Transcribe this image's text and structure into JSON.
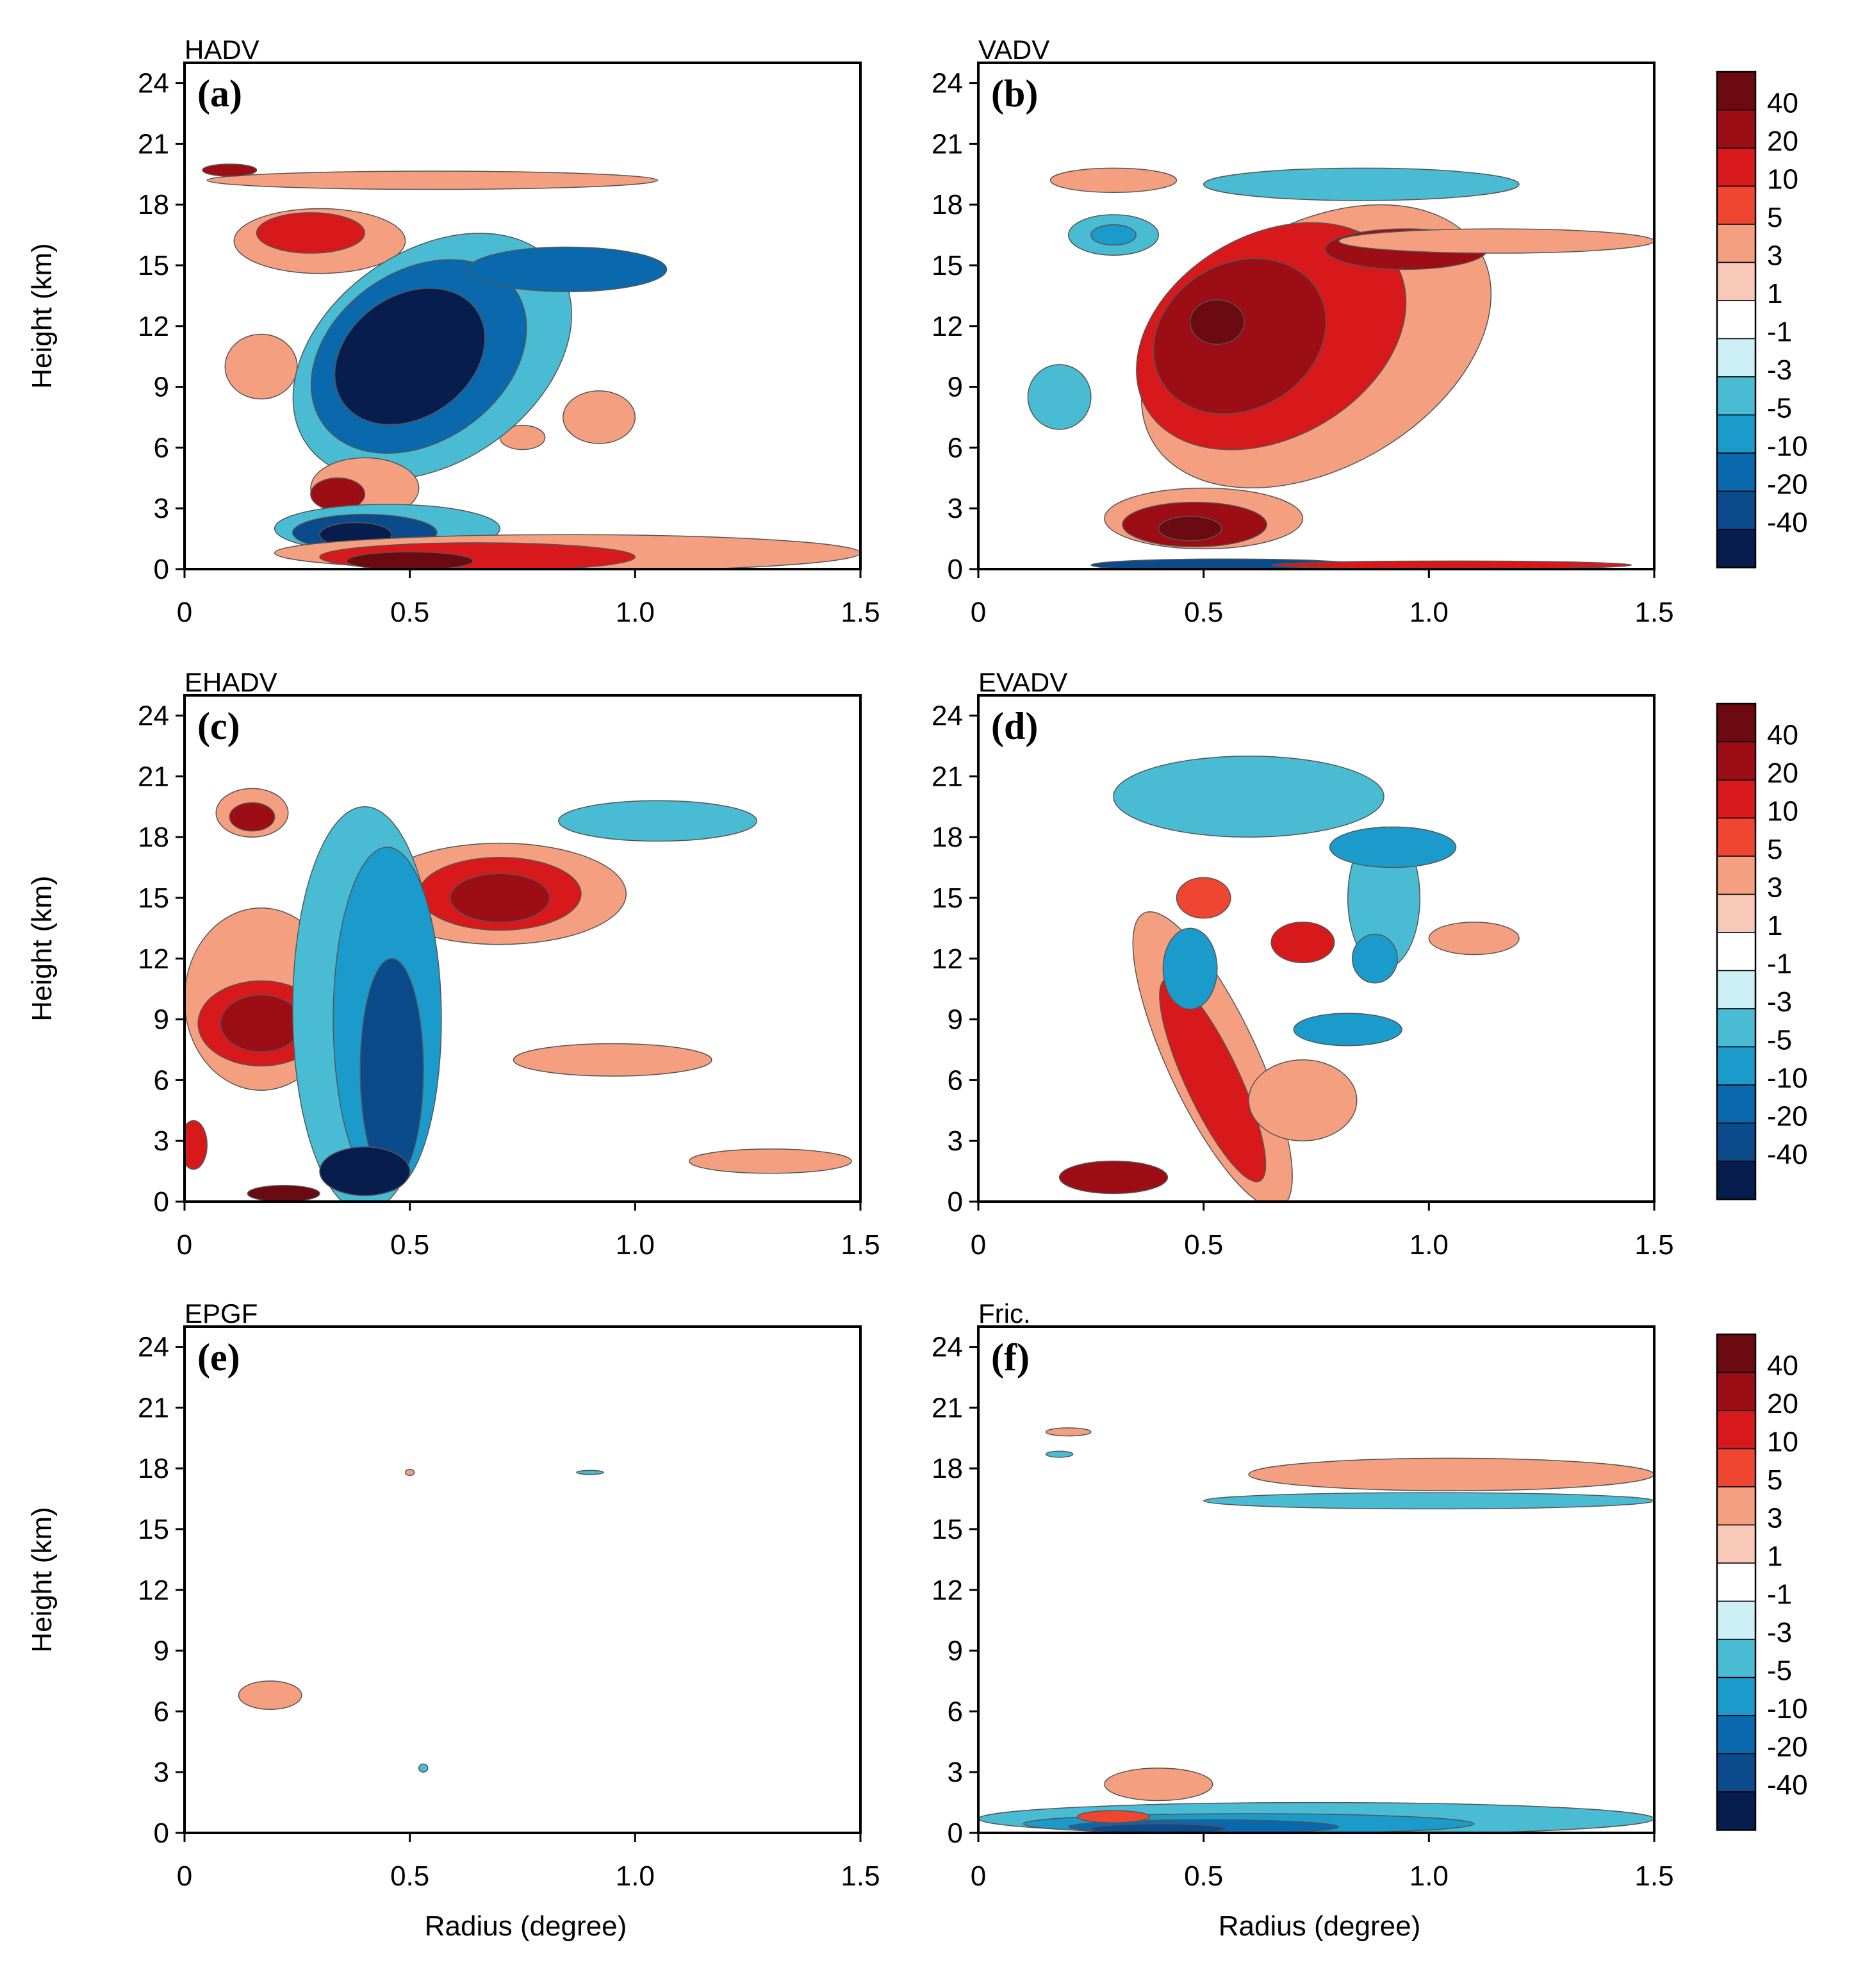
{
  "chart_data": {
    "type": "contour",
    "xlabel": "Radius (degree)",
    "ylabel": "Height (km)",
    "xlim": [
      0,
      1.5
    ],
    "ylim": [
      0,
      25
    ],
    "x_ticks": [
      "0",
      "0.5",
      "1.0",
      "1.5"
    ],
    "y_ticks": [
      "0",
      "3",
      "6",
      "9",
      "12",
      "15",
      "18",
      "21",
      "24"
    ],
    "colorbar": {
      "labels": [
        "40",
        "20",
        "10",
        "5",
        "3",
        "1",
        "-1",
        "-3",
        "-5",
        "-10",
        "-20",
        "-40"
      ],
      "colors": [
        "#6b0a10",
        "#9c0d16",
        "#d7191c",
        "#ee4630",
        "#f4a080",
        "#f8c8b8",
        "#ffffff",
        "#cceef5",
        "#49bbd2",
        "#1a9bcc",
        "#0a69ad",
        "#0b4b8c",
        "#061d4e"
      ]
    },
    "panels": [
      {
        "label": "(a)",
        "title": "HADV",
        "features": [
          {
            "x": 0.3,
            "y": 16.2,
            "rx": 0.19,
            "ry": 1.6,
            "level": 2
          },
          {
            "x": 0.28,
            "y": 16.6,
            "rx": 0.12,
            "ry": 1.0,
            "level": 4
          },
          {
            "x": 0.55,
            "y": 19.2,
            "rx": 0.5,
            "ry": 0.45,
            "level": 2
          },
          {
            "x": 0.1,
            "y": 19.7,
            "rx": 0.06,
            "ry": 0.3,
            "level": 5
          },
          {
            "x": 0.17,
            "y": 10.0,
            "rx": 0.08,
            "ry": 1.6,
            "level": 2
          },
          {
            "x": 0.92,
            "y": 7.5,
            "rx": 0.08,
            "ry": 1.3,
            "level": 2
          },
          {
            "x": 0.75,
            "y": 6.5,
            "rx": 0.05,
            "ry": 0.6,
            "level": 2
          },
          {
            "x": 0.55,
            "y": 10.5,
            "rx": 0.34,
            "ry": 5.2,
            "level": -2,
            "rot": -35
          },
          {
            "x": 0.52,
            "y": 10.5,
            "rx": 0.26,
            "ry": 4.2,
            "level": -4,
            "rot": -35
          },
          {
            "x": 0.5,
            "y": 10.5,
            "rx": 0.18,
            "ry": 3.0,
            "level": -6,
            "rot": -35
          },
          {
            "x": 0.85,
            "y": 14.8,
            "rx": 0.22,
            "ry": 1.1,
            "level": -4
          },
          {
            "x": 0.4,
            "y": 4.0,
            "rx": 0.12,
            "ry": 1.5,
            "level": 2
          },
          {
            "x": 0.34,
            "y": 3.7,
            "rx": 0.06,
            "ry": 0.8,
            "level": 5
          },
          {
            "x": 0.45,
            "y": 2.0,
            "rx": 0.25,
            "ry": 1.2,
            "level": -2
          },
          {
            "x": 0.4,
            "y": 1.8,
            "rx": 0.16,
            "ry": 0.9,
            "level": -5
          },
          {
            "x": 0.38,
            "y": 1.7,
            "rx": 0.08,
            "ry": 0.6,
            "level": -7
          },
          {
            "x": 0.85,
            "y": 0.8,
            "rx": 0.65,
            "ry": 0.9,
            "level": 2
          },
          {
            "x": 0.65,
            "y": 0.6,
            "rx": 0.35,
            "ry": 0.7,
            "level": 4
          },
          {
            "x": 0.5,
            "y": 0.4,
            "rx": 0.14,
            "ry": 0.45,
            "level": 6
          }
        ]
      },
      {
        "label": "(b)",
        "title": "VADV",
        "features": [
          {
            "x": 0.75,
            "y": 11.0,
            "rx": 0.42,
            "ry": 6.0,
            "level": 2,
            "rot": -30
          },
          {
            "x": 0.65,
            "y": 11.5,
            "rx": 0.32,
            "ry": 5.0,
            "level": 4,
            "rot": -30
          },
          {
            "x": 0.58,
            "y": 11.5,
            "rx": 0.2,
            "ry": 3.6,
            "level": 5,
            "rot": -30
          },
          {
            "x": 0.53,
            "y": 12.2,
            "rx": 0.06,
            "ry": 1.1,
            "level": 7
          },
          {
            "x": 0.95,
            "y": 15.8,
            "rx": 0.18,
            "ry": 1.0,
            "level": 5
          },
          {
            "x": 1.15,
            "y": 16.2,
            "rx": 0.35,
            "ry": 0.6,
            "level": 2
          },
          {
            "x": 0.3,
            "y": 19.2,
            "rx": 0.14,
            "ry": 0.6,
            "level": 2
          },
          {
            "x": 0.3,
            "y": 16.5,
            "rx": 0.1,
            "ry": 1.0,
            "level": -2
          },
          {
            "x": 0.3,
            "y": 16.5,
            "rx": 0.05,
            "ry": 0.5,
            "level": -3
          },
          {
            "x": 0.85,
            "y": 19.0,
            "rx": 0.35,
            "ry": 0.8,
            "level": -2
          },
          {
            "x": 0.18,
            "y": 8.5,
            "rx": 0.07,
            "ry": 1.6,
            "level": -2
          },
          {
            "x": 0.5,
            "y": 2.5,
            "rx": 0.22,
            "ry": 1.5,
            "level": 2
          },
          {
            "x": 0.48,
            "y": 2.2,
            "rx": 0.16,
            "ry": 1.1,
            "level": 5
          },
          {
            "x": 0.47,
            "y": 2.0,
            "rx": 0.07,
            "ry": 0.6,
            "level": 7
          },
          {
            "x": 0.55,
            "y": 0.2,
            "rx": 0.3,
            "ry": 0.3,
            "level": -5
          },
          {
            "x": 1.05,
            "y": 0.2,
            "rx": 0.4,
            "ry": 0.2,
            "level": 4
          }
        ]
      },
      {
        "label": "(c)",
        "title": "EHADV",
        "features": [
          {
            "x": 0.17,
            "y": 10.0,
            "rx": 0.17,
            "ry": 4.5,
            "level": 2
          },
          {
            "x": 0.17,
            "y": 8.8,
            "rx": 0.14,
            "ry": 2.1,
            "level": 4
          },
          {
            "x": 0.17,
            "y": 8.8,
            "rx": 0.09,
            "ry": 1.4,
            "level": 5
          },
          {
            "x": 0.15,
            "y": 19.2,
            "rx": 0.08,
            "ry": 1.2,
            "level": 2
          },
          {
            "x": 0.15,
            "y": 19.0,
            "rx": 0.05,
            "ry": 0.7,
            "level": 5
          },
          {
            "x": 0.7,
            "y": 15.2,
            "rx": 0.28,
            "ry": 2.5,
            "level": 2
          },
          {
            "x": 0.7,
            "y": 15.2,
            "rx": 0.18,
            "ry": 1.8,
            "level": 4
          },
          {
            "x": 0.7,
            "y": 15.0,
            "rx": 0.11,
            "ry": 1.2,
            "level": 5
          },
          {
            "x": 0.4,
            "y": 9.5,
            "rx": 0.16,
            "ry": 10.0,
            "level": -2
          },
          {
            "x": 0.45,
            "y": 9.0,
            "rx": 0.12,
            "ry": 8.5,
            "level": -3
          },
          {
            "x": 0.46,
            "y": 6.5,
            "rx": 0.07,
            "ry": 5.5,
            "level": -5
          },
          {
            "x": 0.4,
            "y": 1.5,
            "rx": 0.1,
            "ry": 1.2,
            "level": -7
          },
          {
            "x": 0.22,
            "y": 0.4,
            "rx": 0.08,
            "ry": 0.4,
            "level": 6
          },
          {
            "x": 1.05,
            "y": 18.8,
            "rx": 0.22,
            "ry": 1.0,
            "level": -2
          },
          {
            "x": 0.95,
            "y": 7.0,
            "rx": 0.22,
            "ry": 0.8,
            "level": 2
          },
          {
            "x": 1.3,
            "y": 2.0,
            "rx": 0.18,
            "ry": 0.6,
            "level": 2
          },
          {
            "x": 0.02,
            "y": 2.8,
            "rx": 0.03,
            "ry": 1.2,
            "level": 4
          }
        ]
      },
      {
        "label": "(d)",
        "title": "EVADV",
        "features": [
          {
            "x": 0.52,
            "y": 7.0,
            "rx": 0.1,
            "ry": 8.0,
            "level": 2,
            "rot": -25
          },
          {
            "x": 0.52,
            "y": 6.0,
            "rx": 0.06,
            "ry": 5.5,
            "level": 4,
            "rot": -25
          },
          {
            "x": 0.3,
            "y": 1.2,
            "rx": 0.12,
            "ry": 0.8,
            "level": 5
          },
          {
            "x": 0.47,
            "y": 11.5,
            "rx": 0.06,
            "ry": 2.0,
            "level": -3
          },
          {
            "x": 0.9,
            "y": 15.0,
            "rx": 0.08,
            "ry": 3.5,
            "level": -2
          },
          {
            "x": 0.88,
            "y": 12.0,
            "rx": 0.05,
            "ry": 1.2,
            "level": -3
          },
          {
            "x": 0.82,
            "y": 8.5,
            "rx": 0.12,
            "ry": 0.8,
            "level": -3
          },
          {
            "x": 0.92,
            "y": 17.5,
            "rx": 0.14,
            "ry": 1.0,
            "level": -3
          },
          {
            "x": 0.72,
            "y": 12.8,
            "rx": 0.07,
            "ry": 1.0,
            "level": 4
          },
          {
            "x": 0.5,
            "y": 15.0,
            "rx": 0.06,
            "ry": 1.0,
            "level": 3
          },
          {
            "x": 1.1,
            "y": 13.0,
            "rx": 0.1,
            "ry": 0.8,
            "level": 2
          },
          {
            "x": 0.72,
            "y": 5.0,
            "rx": 0.12,
            "ry": 2.0,
            "level": 2
          },
          {
            "x": 0.6,
            "y": 20.0,
            "rx": 0.3,
            "ry": 2.0,
            "level": -2
          }
        ]
      },
      {
        "label": "(e)",
        "title": "EPGF",
        "features": [
          {
            "x": 0.19,
            "y": 6.8,
            "rx": 0.07,
            "ry": 0.7,
            "level": 2
          },
          {
            "x": 0.5,
            "y": 17.8,
            "rx": 0.01,
            "ry": 0.15,
            "level": 2
          },
          {
            "x": 0.9,
            "y": 17.8,
            "rx": 0.03,
            "ry": 0.1,
            "level": -2
          },
          {
            "x": 0.53,
            "y": 3.2,
            "rx": 0.01,
            "ry": 0.2,
            "level": -2
          }
        ]
      },
      {
        "label": "(f)",
        "title": "Fric.",
        "features": [
          {
            "x": 1.05,
            "y": 17.7,
            "rx": 0.45,
            "ry": 0.8,
            "level": 2
          },
          {
            "x": 1.0,
            "y": 16.4,
            "rx": 0.5,
            "ry": 0.4,
            "level": -2
          },
          {
            "x": 0.2,
            "y": 19.8,
            "rx": 0.05,
            "ry": 0.2,
            "level": 2
          },
          {
            "x": 0.18,
            "y": 18.7,
            "rx": 0.03,
            "ry": 0.15,
            "level": -2
          },
          {
            "x": 0.4,
            "y": 2.4,
            "rx": 0.12,
            "ry": 0.8,
            "level": 2
          },
          {
            "x": 0.75,
            "y": 0.7,
            "rx": 0.75,
            "ry": 0.8,
            "level": -2
          },
          {
            "x": 0.6,
            "y": 0.45,
            "rx": 0.5,
            "ry": 0.5,
            "level": -3
          },
          {
            "x": 0.5,
            "y": 0.3,
            "rx": 0.3,
            "ry": 0.35,
            "level": -4
          },
          {
            "x": 0.4,
            "y": 0.2,
            "rx": 0.15,
            "ry": 0.25,
            "level": -5
          },
          {
            "x": 0.3,
            "y": 0.8,
            "rx": 0.08,
            "ry": 0.3,
            "level": 3
          }
        ]
      }
    ]
  }
}
